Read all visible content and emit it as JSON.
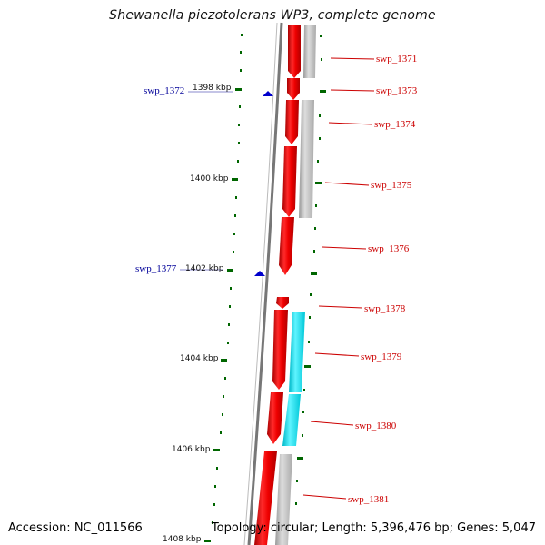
{
  "title": "Shewanella piezotolerans WP3, complete genome",
  "accession": "Accession: NC_011566",
  "summary": "Topology: circular; Length: 5,396,476 bp; Genes: 5,047",
  "kbp_labels": [
    "1398 kbp",
    "1400 kbp",
    "1402 kbp",
    "1404 kbp",
    "1406 kbp",
    "1408 kbp"
  ],
  "genes": [
    "swp_1371",
    "swp_1373",
    "swp_1374",
    "swp_1375",
    "swp_1376",
    "swp_1378",
    "swp_1379",
    "swp_1380",
    "swp_1381"
  ],
  "left_features": [
    "swp_1372",
    "swp_1377"
  ],
  "colors": {
    "gene_red": "#ee0000",
    "gene_label": "#cc0000",
    "cyan": "#00e5ee",
    "gray": "#bbbbbb",
    "tick_green": "#006600",
    "marker_blue": "#0000cc",
    "backbone": "#777777"
  }
}
